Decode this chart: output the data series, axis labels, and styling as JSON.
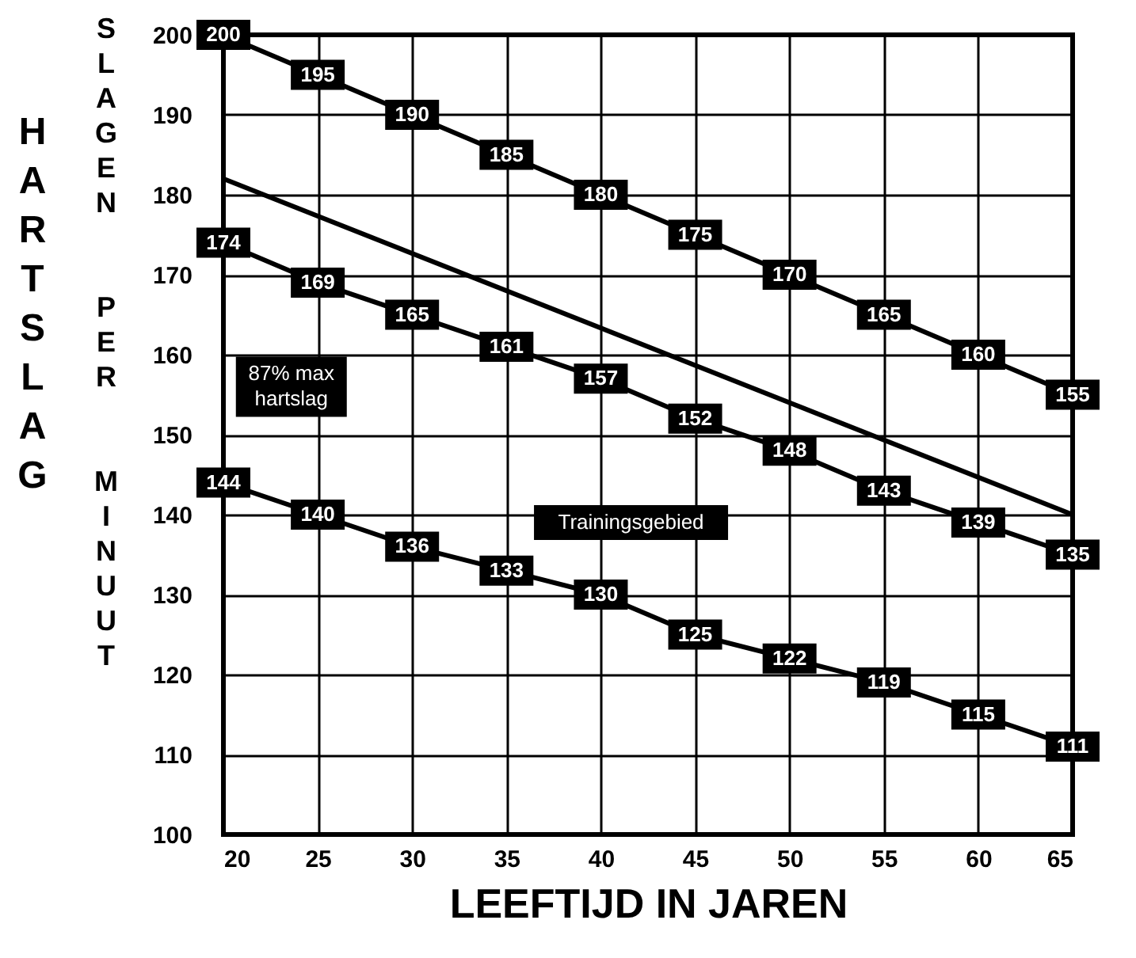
{
  "chart_data": {
    "type": "line",
    "xlabel": "LEEFTIJD IN JAREN",
    "ylabel": "HARTSLAG",
    "subtitle": "SLAGEN PER MINUUT",
    "x": [
      20,
      25,
      30,
      35,
      40,
      45,
      50,
      55,
      60,
      65
    ],
    "series": [
      {
        "color": "#000000",
        "marker": "square",
        "values": [
          200,
          195,
          190,
          185,
          180,
          175,
          170,
          165,
          160,
          155
        ],
        "value_labels": [
          "200",
          "195",
          "190",
          "185",
          "180",
          "175",
          "170",
          "165",
          "160",
          "155"
        ]
      },
      {
        "color": "#000000",
        "x": [
          20,
          65
        ],
        "values": [
          182,
          140
        ]
      },
      {
        "color": "#000000",
        "marker": "square",
        "values": [
          174,
          169,
          165,
          161,
          157,
          152,
          148,
          143,
          139,
          135
        ],
        "value_labels": [
          "174",
          "169",
          "165",
          "161",
          "157",
          "152",
          "148",
          "143",
          "139",
          "135"
        ]
      },
      {
        "color": "#000000",
        "marker": "square",
        "values": [
          144,
          140,
          136,
          133,
          130,
          125,
          122,
          119,
          115,
          111
        ],
        "value_labels": [
          "144",
          "140",
          "136",
          "133",
          "130",
          "125",
          "122",
          "119",
          "115",
          "111"
        ]
      }
    ],
    "annotations": [
      "87% max\nhartslag",
      "Trainingsgebied"
    ],
    "xlim": [
      20,
      65
    ],
    "xticks": [
      20,
      25,
      30,
      35,
      40,
      45,
      50,
      55,
      60,
      65
    ],
    "ylim": [
      100,
      200
    ],
    "yticks": [
      100,
      110,
      120,
      130,
      140,
      150,
      160,
      170,
      180,
      190,
      200
    ],
    "grid": true,
    "legend": false,
    "line_style": "solid"
  }
}
